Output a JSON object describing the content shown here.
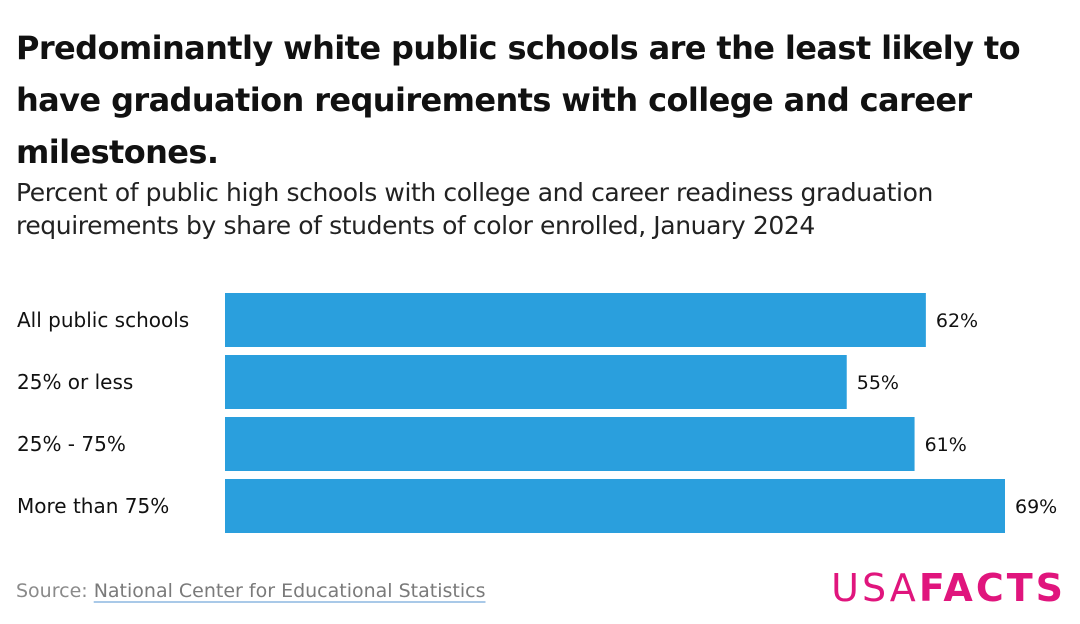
{
  "title": "Predominantly white public schools are the least likely to have graduation requirements with college and career milestones.",
  "subtitle": "Percent of public high schools with college and career readiness graduation requirements by share of students of color enrolled, January 2024",
  "source": {
    "prefix": "Source: ",
    "link_text": "National Center for Educational Statistics"
  },
  "logo": {
    "part1": "USA",
    "part2": "FACTS"
  },
  "colors": {
    "bar": "#2a9fdd",
    "brand": "#e0157d"
  },
  "chart_data": {
    "type": "bar",
    "orientation": "horizontal",
    "title": "Predominantly white public schools are the least likely to have graduation requirements with college and career milestones.",
    "subtitle": "Percent of public high schools with college and career readiness graduation requirements by share of students of color enrolled, January 2024",
    "categories": [
      "All public schools",
      "25% or less",
      "25% - 75%",
      "More than 75%"
    ],
    "values": [
      62,
      55,
      61,
      69
    ],
    "value_labels": [
      "62%",
      "55%",
      "61%",
      "69%"
    ],
    "xlabel": "",
    "ylabel": "",
    "xlim": [
      0,
      69
    ],
    "grid": false,
    "legend": "none"
  }
}
